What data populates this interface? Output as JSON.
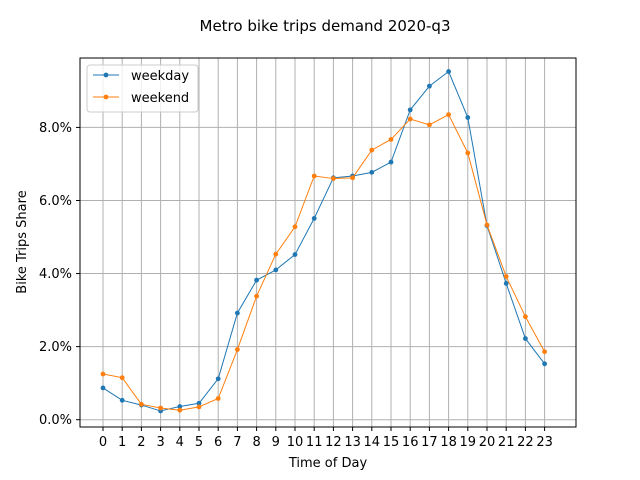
{
  "chart_data": {
    "type": "line",
    "title": "Metro bike trips demand 2020-q3",
    "xlabel": "Time of Day",
    "ylabel": "Bike Trips Share",
    "categories": [
      "0",
      "1",
      "2",
      "3",
      "4",
      "5",
      "6",
      "7",
      "8",
      "9",
      "10",
      "11",
      "12",
      "13",
      "14",
      "15",
      "16",
      "17",
      "18",
      "19",
      "20",
      "21",
      "22",
      "23"
    ],
    "ylim": [
      -0.2,
      9.9
    ],
    "yticks": [
      0,
      2,
      4,
      6,
      8
    ],
    "ytick_labels": [
      "0.0%",
      "2.0%",
      "4.0%",
      "6.0%",
      "8.0%"
    ],
    "grid": true,
    "legend_position": "top-left",
    "series": [
      {
        "name": "weekday",
        "color": "#1f77b4",
        "values": [
          0.87,
          0.53,
          0.4,
          0.24,
          0.36,
          0.45,
          1.12,
          2.92,
          3.82,
          4.1,
          4.52,
          5.51,
          6.62,
          6.67,
          6.77,
          7.05,
          8.48,
          9.13,
          9.53,
          8.27,
          5.31,
          3.73,
          2.22,
          1.53
        ]
      },
      {
        "name": "weekend",
        "color": "#ff7f0e",
        "values": [
          1.25,
          1.15,
          0.42,
          0.32,
          0.26,
          0.35,
          0.58,
          1.92,
          3.38,
          4.53,
          5.28,
          6.67,
          6.6,
          6.62,
          7.38,
          7.67,
          8.23,
          8.07,
          8.35,
          7.3,
          5.33,
          3.92,
          2.82,
          1.86
        ]
      }
    ]
  }
}
